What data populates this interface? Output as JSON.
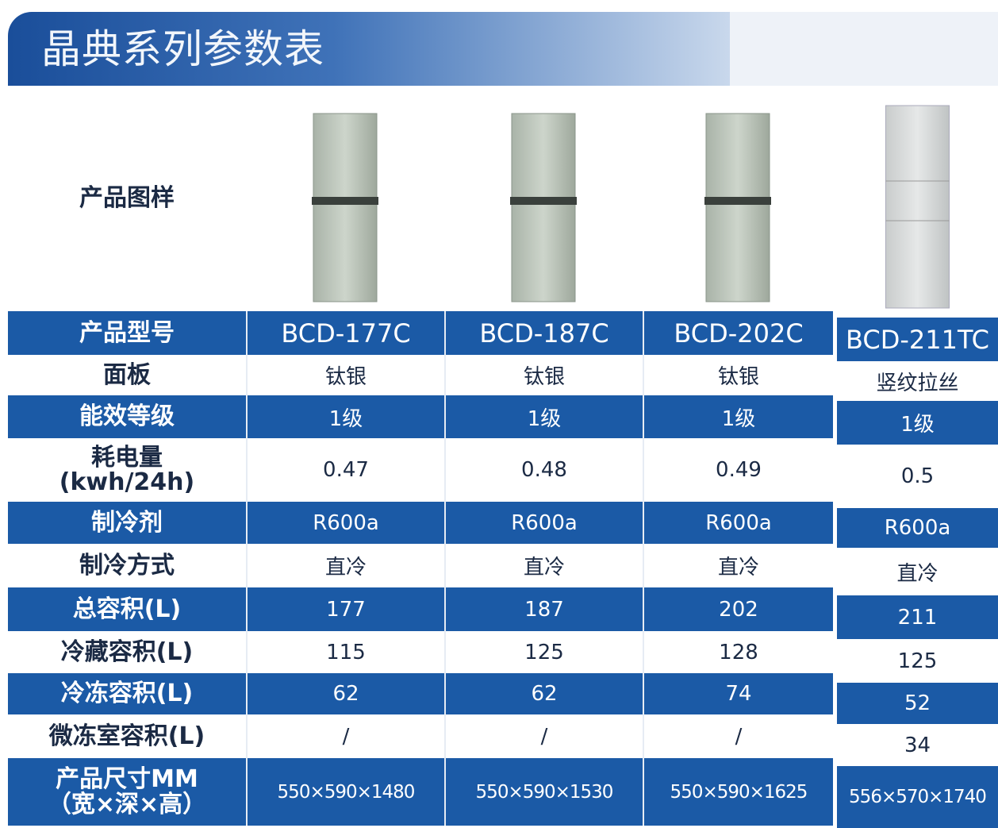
{
  "title": "晶典系列参数表",
  "table": {
    "row_labels": [
      "产品图样",
      "产品型号",
      "面板",
      "能效等级",
      "耗电量\n(kwh/24h)",
      "制冷剂",
      "制冷方式",
      "总容积(L)",
      "冷藏容积(L)",
      "冷冻容积(L)",
      "微冻室容积(L)",
      "产品尺寸MM\n（宽×深×高）"
    ],
    "columns": [
      [
        "BCD-177C",
        "钛银",
        "1级",
        "0.47",
        "R600a",
        "直冷",
        "177",
        "115",
        "62",
        "/",
        "550×590×1480"
      ],
      [
        "BCD-187C",
        "钛银",
        "1级",
        "0.48",
        "R600a",
        "直冷",
        "187",
        "125",
        "62",
        "/",
        "550×590×1530"
      ],
      [
        "BCD-202C",
        "钛银",
        "1级",
        "0.49",
        "R600a",
        "直冷",
        "202",
        "128",
        "74",
        "/",
        "550×590×1625"
      ],
      [
        "BCD-211TC",
        "竖纹拉丝",
        "1级",
        "0.5",
        "R600a",
        "直冷",
        "211",
        "125",
        "52",
        "34",
        "556×570×1740"
      ]
    ]
  }
}
